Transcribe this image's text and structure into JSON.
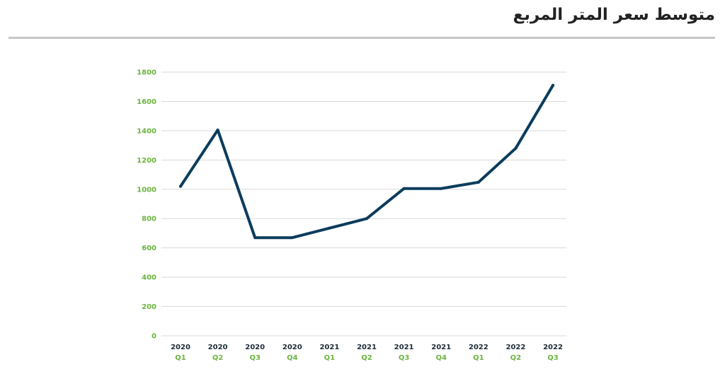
{
  "header": {
    "title": "متوسط سعر المتر المربع"
  },
  "chart_data": {
    "type": "line",
    "title": "متوسط سعر المتر المربع",
    "xlabel": "",
    "ylabel": "",
    "categories": [
      [
        "2020",
        "Q1"
      ],
      [
        "2020",
        "Q2"
      ],
      [
        "2020",
        "Q3"
      ],
      [
        "2020",
        "Q4"
      ],
      [
        "2021",
        "Q1"
      ],
      [
        "2021",
        "Q2"
      ],
      [
        "2021",
        "Q3"
      ],
      [
        "2021",
        "Q4"
      ],
      [
        "2022",
        "Q1"
      ],
      [
        "2022",
        "Q2"
      ],
      [
        "2022",
        "Q3"
      ]
    ],
    "series": [
      {
        "values": [
          1020,
          1405,
          670,
          670,
          735,
          800,
          1005,
          1005,
          1048,
          1280,
          1710
        ]
      }
    ],
    "yticks": [
      0,
      200,
      400,
      600,
      800,
      1000,
      1200,
      1400,
      1600,
      1800
    ],
    "ylim": [
      0,
      1800
    ],
    "grid": true,
    "legend": "none"
  },
  "colors": {
    "line": "#0b3c5d",
    "tick_year": "#1d2b36",
    "tick_quarter": "#6cb33f",
    "ytick": "#6cb33f",
    "grid": "#d9d9d9",
    "rule": "#c6c6c6"
  }
}
